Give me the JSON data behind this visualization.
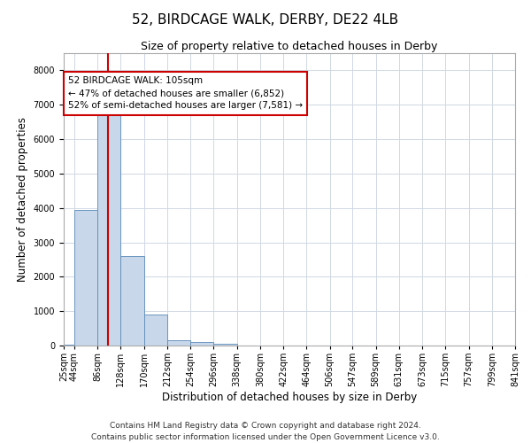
{
  "title": "52, BIRDCAGE WALK, DERBY, DE22 4LB",
  "subtitle": "Size of property relative to detached houses in Derby",
  "xlabel": "Distribution of detached houses by size in Derby",
  "ylabel": "Number of detached properties",
  "bar_color": "#c8d8ea",
  "bar_edge_color": "#5a8ab8",
  "annotation_box_color": "#cc0000",
  "vline_color": "#cc0000",
  "property_size": 105,
  "annotation_text": "52 BIRDCAGE WALK: 105sqm\n← 47% of detached houses are smaller (6,852)\n52% of semi-detached houses are larger (7,581) →",
  "footer_line1": "Contains HM Land Registry data © Crown copyright and database right 2024.",
  "footer_line2": "Contains public sector information licensed under the Open Government Licence v3.0.",
  "bin_edges": [
    25,
    44,
    86,
    128,
    170,
    212,
    254,
    296,
    338,
    380,
    422,
    464,
    506,
    547,
    589,
    631,
    673,
    715,
    757,
    799,
    841
  ],
  "bin_labels": [
    "25sqm",
    "44sqm",
    "86sqm",
    "128sqm",
    "170sqm",
    "212sqm",
    "254sqm",
    "296sqm",
    "338sqm",
    "380sqm",
    "422sqm",
    "464sqm",
    "506sqm",
    "547sqm",
    "589sqm",
    "631sqm",
    "673sqm",
    "715sqm",
    "757sqm",
    "799sqm",
    "841sqm"
  ],
  "counts": [
    30,
    3950,
    6700,
    2600,
    900,
    150,
    100,
    60,
    0,
    0,
    0,
    0,
    0,
    0,
    0,
    0,
    0,
    0,
    0,
    0
  ],
  "ylim": [
    0,
    8500
  ],
  "yticks": [
    0,
    1000,
    2000,
    3000,
    4000,
    5000,
    6000,
    7000,
    8000
  ],
  "grid_color": "#d0d8e4",
  "background_color": "#ffffff",
  "title_fontsize": 11,
  "subtitle_fontsize": 9,
  "tick_fontsize": 7,
  "label_fontsize": 8.5,
  "footer_fontsize": 6.5
}
